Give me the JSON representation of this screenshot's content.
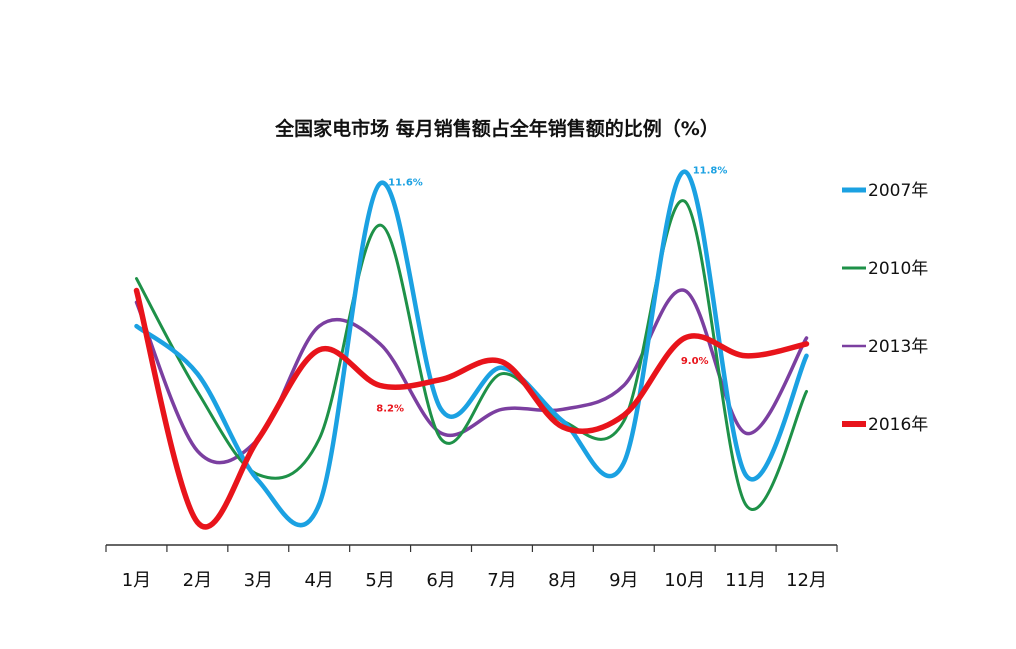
{
  "chart_data": {
    "type": "line",
    "title": "全国家电市场 每月销售额占全年销售额的比例（%）",
    "xlabel": "",
    "ylabel": "",
    "categories": [
      "1月",
      "2月",
      "3月",
      "4月",
      "5月",
      "6月",
      "7月",
      "8月",
      "9月",
      "10月",
      "11月",
      "12月"
    ],
    "ylim": [
      5.5,
      12.5
    ],
    "grid": false,
    "legend_position": "right",
    "series": [
      {
        "name": "2007年",
        "color": "#1BA1E2",
        "values": [
          9.2,
          8.4,
          6.6,
          6.2,
          11.6,
          7.8,
          8.5,
          7.6,
          6.9,
          11.8,
          6.7,
          8.7
        ]
      },
      {
        "name": "2010年",
        "color": "#1E9148",
        "values": [
          10.0,
          8.1,
          6.7,
          7.3,
          10.9,
          7.3,
          8.4,
          7.6,
          7.6,
          11.3,
          6.2,
          8.1
        ]
      },
      {
        "name": "2013年",
        "color": "#7B3FA0",
        "values": [
          9.6,
          7.1,
          7.3,
          9.2,
          8.9,
          7.4,
          7.8,
          7.8,
          8.2,
          9.8,
          7.4,
          9.0
        ]
      },
      {
        "name": "2016年",
        "color": "#E8141B",
        "values": [
          9.8,
          5.9,
          7.3,
          8.8,
          8.2,
          8.3,
          8.6,
          7.5,
          7.7,
          9.0,
          8.7,
          8.9
        ]
      }
    ],
    "annotations": [
      {
        "series": "2007年",
        "category": "5月",
        "text": "11.6%"
      },
      {
        "series": "2007年",
        "category": "10月",
        "text": "11.8%"
      },
      {
        "series": "2016年",
        "category": "5月",
        "text": "8.2%"
      },
      {
        "series": "2016年",
        "category": "10月",
        "text": "9.0%"
      }
    ]
  }
}
